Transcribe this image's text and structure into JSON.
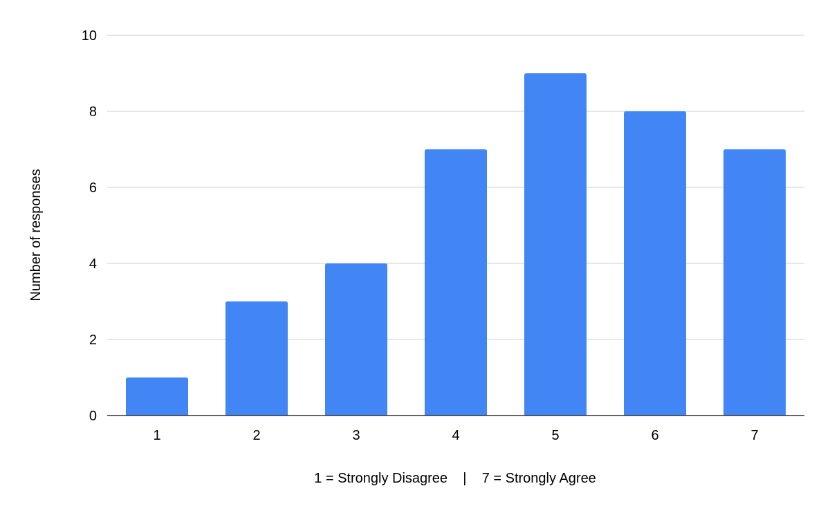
{
  "chart_data": {
    "type": "bar",
    "title": "",
    "categories": [
      "1",
      "2",
      "3",
      "4",
      "5",
      "6",
      "7"
    ],
    "values": [
      1,
      3,
      4,
      7,
      9,
      8,
      7
    ],
    "xlabel": "1 = Strongly Disagree    |    7 = Strongly Agree",
    "ylabel": "Number of responses",
    "ylim": [
      0,
      10
    ],
    "yticks": [
      "0",
      "2",
      "4",
      "6",
      "8",
      "10"
    ],
    "grid": true,
    "legend": "none",
    "colors": {
      "bar": "#4285f4",
      "grid": "#cccccc",
      "axis": "#333333"
    }
  }
}
